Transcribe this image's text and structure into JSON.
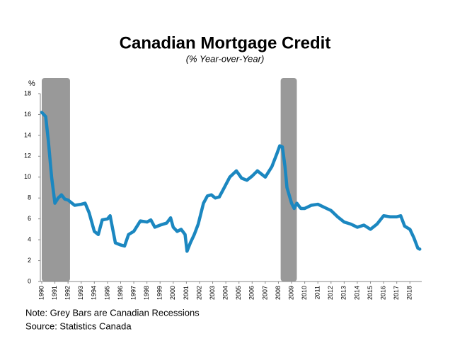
{
  "chart_data": {
    "type": "line",
    "title": "Canadian Mortgage Credit",
    "subtitle": "(% Year-over-Year)",
    "y_label": "%",
    "notes": [
      "Note: Grey Bars are Canadian Recessions",
      "Source: Statistics Canada"
    ],
    "recession_color": "#999999",
    "recessions": [
      [
        1990.0,
        1992.15
      ],
      [
        2008.17,
        2009.4
      ]
    ],
    "xlim": [
      1990,
      2018.9
    ],
    "ylim": [
      0,
      18
    ],
    "xticks": [
      1990,
      1991,
      1992,
      1993,
      1994,
      1995,
      1996,
      1997,
      1998,
      1999,
      2000,
      2001,
      2002,
      2003,
      2004,
      2005,
      2006,
      2007,
      2008,
      2009,
      2010,
      2011,
      2012,
      2013,
      2014,
      2015,
      2016,
      2017,
      2018
    ],
    "yticks": [
      0,
      2,
      4,
      6,
      8,
      10,
      12,
      14,
      16,
      18
    ],
    "series": [
      {
        "name": "Mortgage Credit",
        "color": "#1b87c0",
        "x": [
          1990.0,
          1990.3,
          1990.5,
          1990.75,
          1991.0,
          1991.25,
          1991.5,
          1991.75,
          1992.0,
          1992.5,
          1993.0,
          1993.3,
          1993.6,
          1994.0,
          1994.3,
          1994.6,
          1995.0,
          1995.2,
          1995.6,
          1996.0,
          1996.3,
          1996.6,
          1997.0,
          1997.5,
          1998.0,
          1998.3,
          1998.6,
          1999.0,
          1999.5,
          1999.8,
          2000.0,
          2000.3,
          2000.6,
          2000.9,
          2001.05,
          2001.3,
          2001.6,
          2001.9,
          2002.3,
          2002.6,
          2002.9,
          2003.2,
          2003.5,
          2003.8,
          2004.3,
          2004.8,
          2005.2,
          2005.6,
          2006.0,
          2006.4,
          2007.0,
          2007.5,
          2007.9,
          2008.1,
          2008.3,
          2008.5,
          2008.65,
          2009.0,
          2009.2,
          2009.4,
          2009.7,
          2010.0,
          2010.5,
          2011.0,
          2011.5,
          2012.0,
          2012.5,
          2013.0,
          2013.5,
          2014.0,
          2014.5,
          2015.0,
          2015.5,
          2016.0,
          2016.5,
          2017.0,
          2017.3,
          2017.6,
          2018.0,
          2018.3,
          2018.6,
          2018.75
        ],
        "values": [
          16.2,
          15.8,
          13.5,
          10.0,
          7.5,
          8.0,
          8.3,
          7.9,
          7.8,
          7.3,
          7.4,
          7.5,
          6.6,
          4.8,
          4.5,
          5.9,
          6.0,
          6.3,
          3.7,
          3.5,
          3.4,
          4.5,
          4.8,
          5.8,
          5.7,
          5.9,
          5.2,
          5.4,
          5.6,
          6.1,
          5.2,
          4.8,
          5.0,
          4.5,
          2.9,
          3.7,
          4.5,
          5.5,
          7.5,
          8.2,
          8.3,
          8.0,
          8.1,
          8.8,
          10.0,
          10.6,
          9.9,
          9.7,
          10.1,
          10.6,
          10.0,
          11.0,
          12.3,
          13.0,
          12.9,
          11.0,
          9.0,
          7.5,
          7.0,
          7.5,
          7.0,
          7.0,
          7.3,
          7.4,
          7.1,
          6.8,
          6.2,
          5.7,
          5.5,
          5.2,
          5.4,
          5.0,
          5.5,
          6.3,
          6.2,
          6.2,
          6.3,
          5.3,
          5.0,
          4.2,
          3.2,
          3.1
        ]
      }
    ]
  }
}
